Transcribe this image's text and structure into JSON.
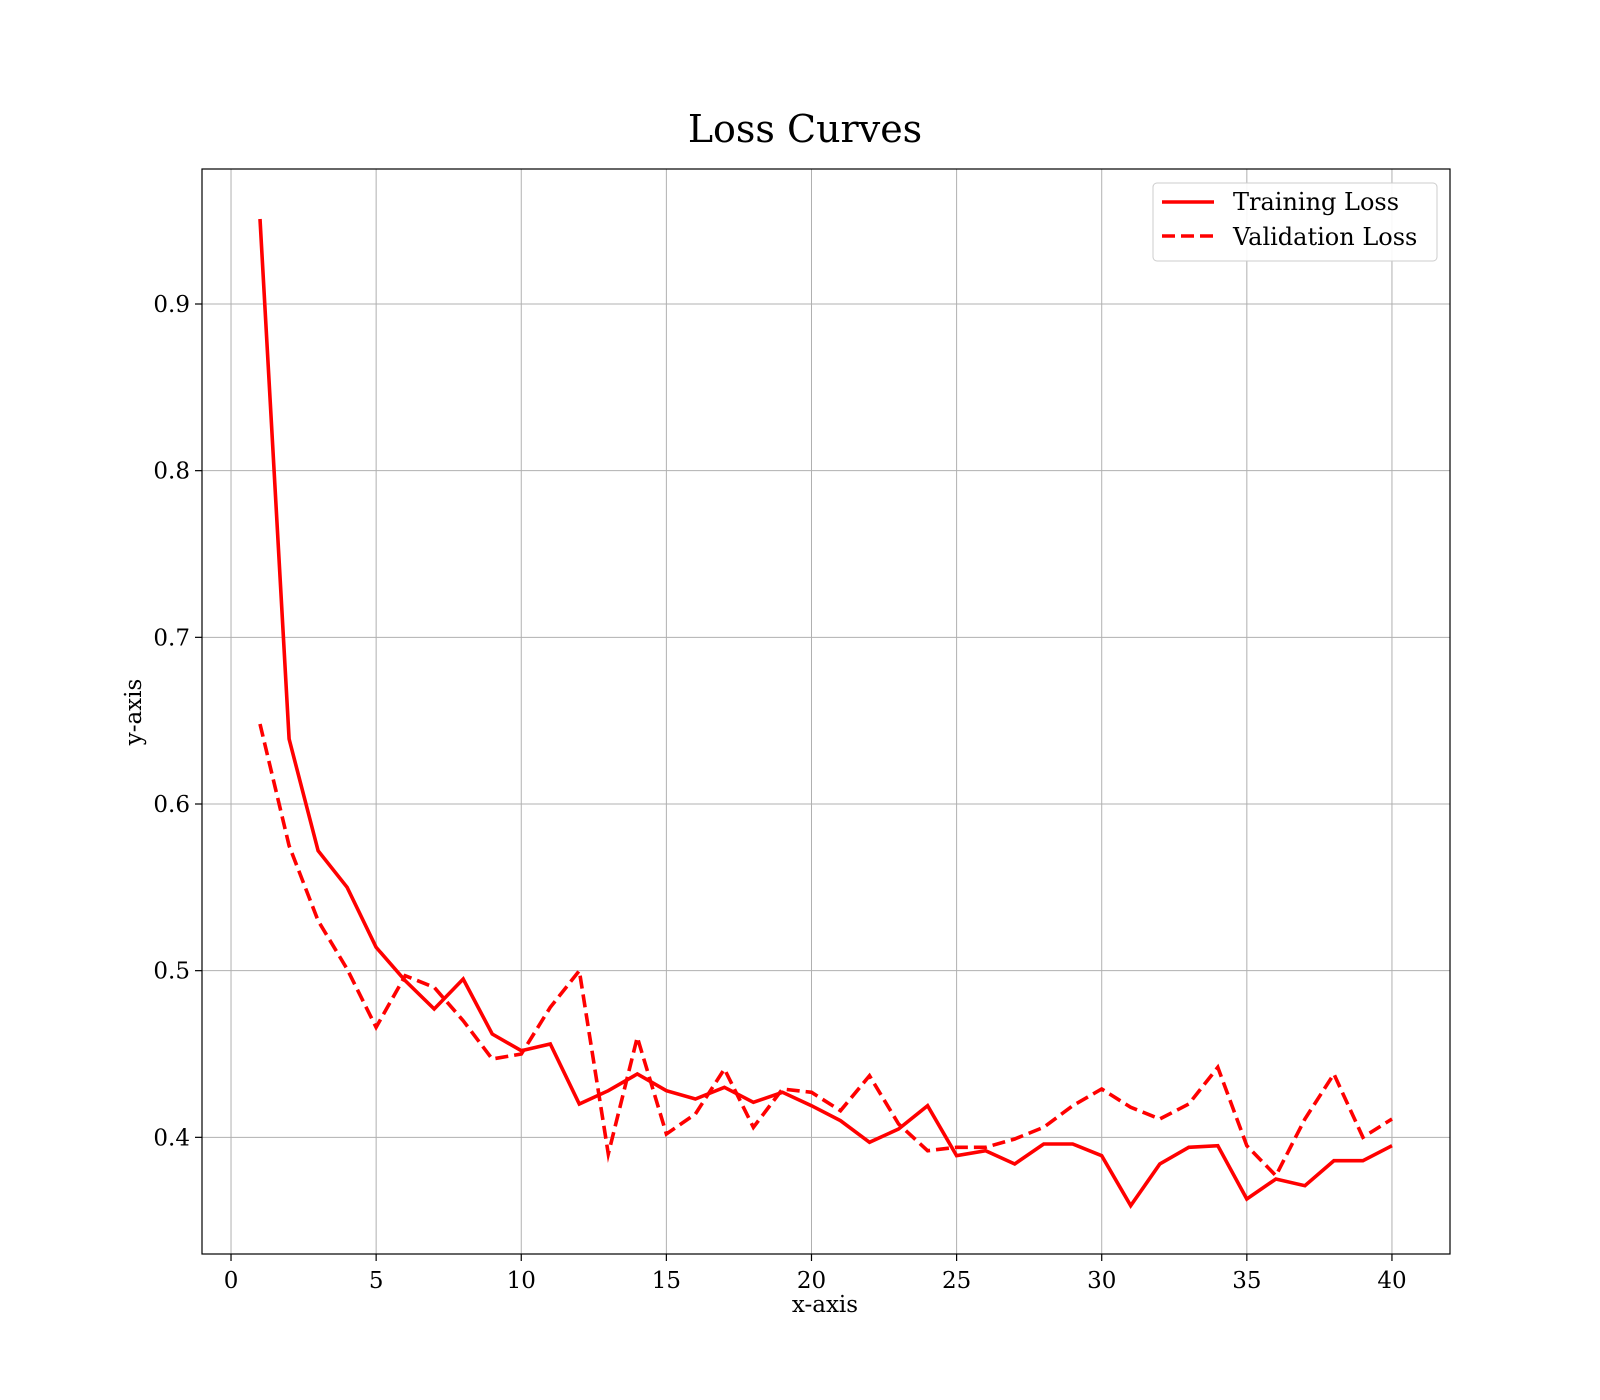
{
  "chart_data": {
    "type": "line",
    "title": "Loss Curves",
    "xlabel": "x-axis",
    "ylabel": "y-axis",
    "xlim": [
      -1,
      42
    ],
    "ylim": [
      0.33,
      0.981
    ],
    "xticks": [
      0,
      5,
      10,
      15,
      20,
      25,
      30,
      35,
      40
    ],
    "yticks": [
      0.4,
      0.5,
      0.6,
      0.7,
      0.8,
      0.9
    ],
    "ytick_labels": [
      "0.4",
      "0.5",
      "0.6",
      "0.7",
      "0.8",
      "0.9"
    ],
    "grid": true,
    "legend_position": "upper right",
    "x": [
      1,
      2,
      3,
      4,
      5,
      6,
      7,
      8,
      9,
      10,
      11,
      12,
      13,
      14,
      15,
      16,
      17,
      18,
      19,
      20,
      21,
      22,
      23,
      24,
      25,
      26,
      27,
      28,
      29,
      30,
      31,
      32,
      33,
      34,
      35,
      36,
      37,
      38,
      39,
      40
    ],
    "series": [
      {
        "name": "Training Loss",
        "color": "#ff0000",
        "linestyle": "solid",
        "values": [
          0.951,
          0.639,
          0.572,
          0.55,
          0.514,
          0.494,
          0.477,
          0.495,
          0.462,
          0.452,
          0.456,
          0.42,
          0.428,
          0.438,
          0.428,
          0.423,
          0.43,
          0.421,
          0.427,
          0.419,
          0.41,
          0.397,
          0.405,
          0.419,
          0.389,
          0.392,
          0.384,
          0.396,
          0.396,
          0.389,
          0.359,
          0.384,
          0.394,
          0.395,
          0.363,
          0.375,
          0.371,
          0.386,
          0.386,
          0.395
        ]
      },
      {
        "name": "Validation Loss",
        "color": "#ff0000",
        "linestyle": "dashed",
        "values": [
          0.648,
          0.575,
          0.53,
          0.501,
          0.466,
          0.497,
          0.49,
          0.47,
          0.447,
          0.45,
          0.478,
          0.5,
          0.39,
          0.46,
          0.402,
          0.414,
          0.441,
          0.406,
          0.429,
          0.427,
          0.416,
          0.437,
          0.408,
          0.392,
          0.394,
          0.394,
          0.399,
          0.406,
          0.419,
          0.429,
          0.418,
          0.411,
          0.42,
          0.442,
          0.395,
          0.377,
          0.411,
          0.438,
          0.4,
          0.411
        ]
      }
    ]
  }
}
